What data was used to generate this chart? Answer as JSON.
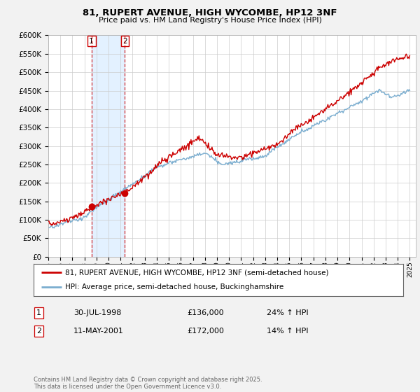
{
  "title": "81, RUPERT AVENUE, HIGH WYCOMBE, HP12 3NF",
  "subtitle": "Price paid vs. HM Land Registry's House Price Index (HPI)",
  "ylim": [
    0,
    600000
  ],
  "yticks": [
    0,
    50000,
    100000,
    150000,
    200000,
    250000,
    300000,
    350000,
    400000,
    450000,
    500000,
    550000,
    600000
  ],
  "line1_color": "#cc0000",
  "line2_color": "#7aadcf",
  "purchase1_date": 1998.58,
  "purchase1_price": 136000,
  "purchase2_date": 2001.36,
  "purchase2_price": 172000,
  "legend_label1": "81, RUPERT AVENUE, HIGH WYCOMBE, HP12 3NF (semi-detached house)",
  "legend_label2": "HPI: Average price, semi-detached house, Buckinghamshire",
  "table_row1": [
    "1",
    "30-JUL-1998",
    "£136,000",
    "24% ↑ HPI"
  ],
  "table_row2": [
    "2",
    "11-MAY-2001",
    "£172,000",
    "14% ↑ HPI"
  ],
  "footnote": "Contains HM Land Registry data © Crown copyright and database right 2025.\nThis data is licensed under the Open Government Licence v3.0.",
  "background_color": "#f2f2f2",
  "plot_bg_color": "#ffffff",
  "shade_color": "#ddeeff"
}
